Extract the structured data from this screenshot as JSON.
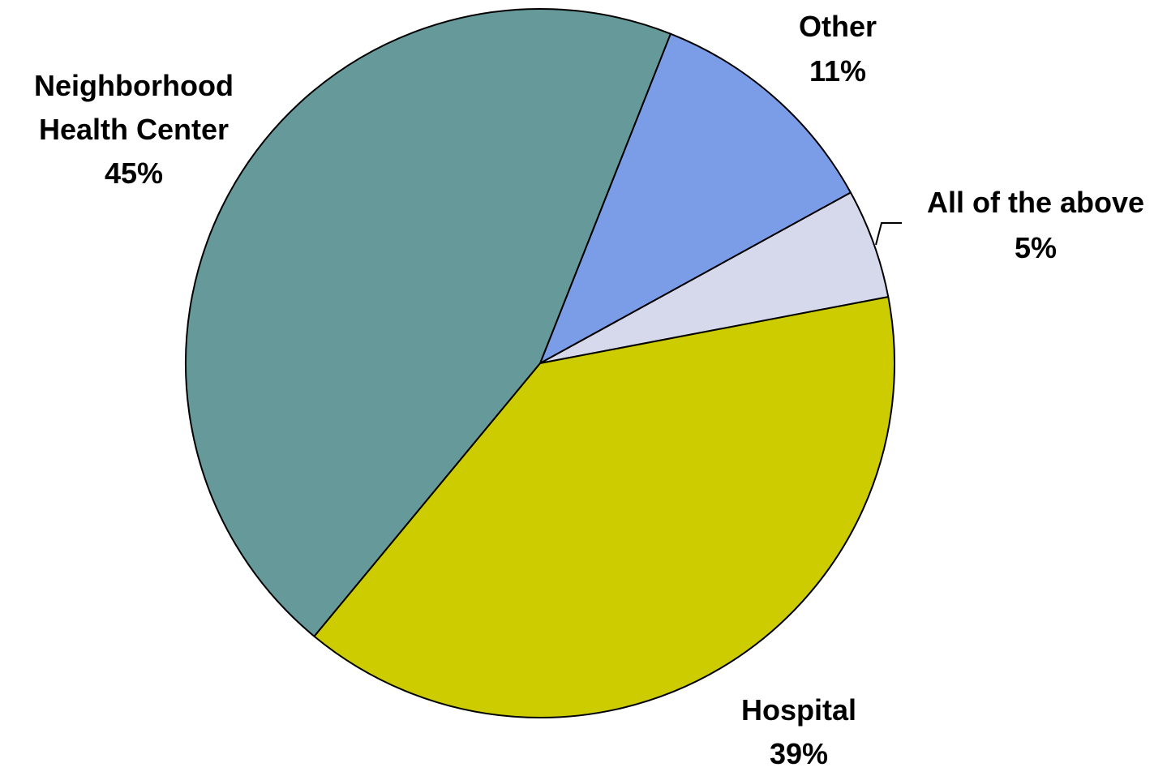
{
  "chart_data": {
    "type": "pie",
    "categories": [
      "Other",
      "All of the above",
      "Hospital",
      "Neighborhood Health Center"
    ],
    "values": [
      11,
      5,
      39,
      45
    ],
    "value_labels": [
      "11%",
      "5%",
      "39%",
      "45%"
    ],
    "colors": [
      "#7b9ce6",
      "#d6d8ec",
      "#cccc00",
      "#669999"
    ]
  }
}
